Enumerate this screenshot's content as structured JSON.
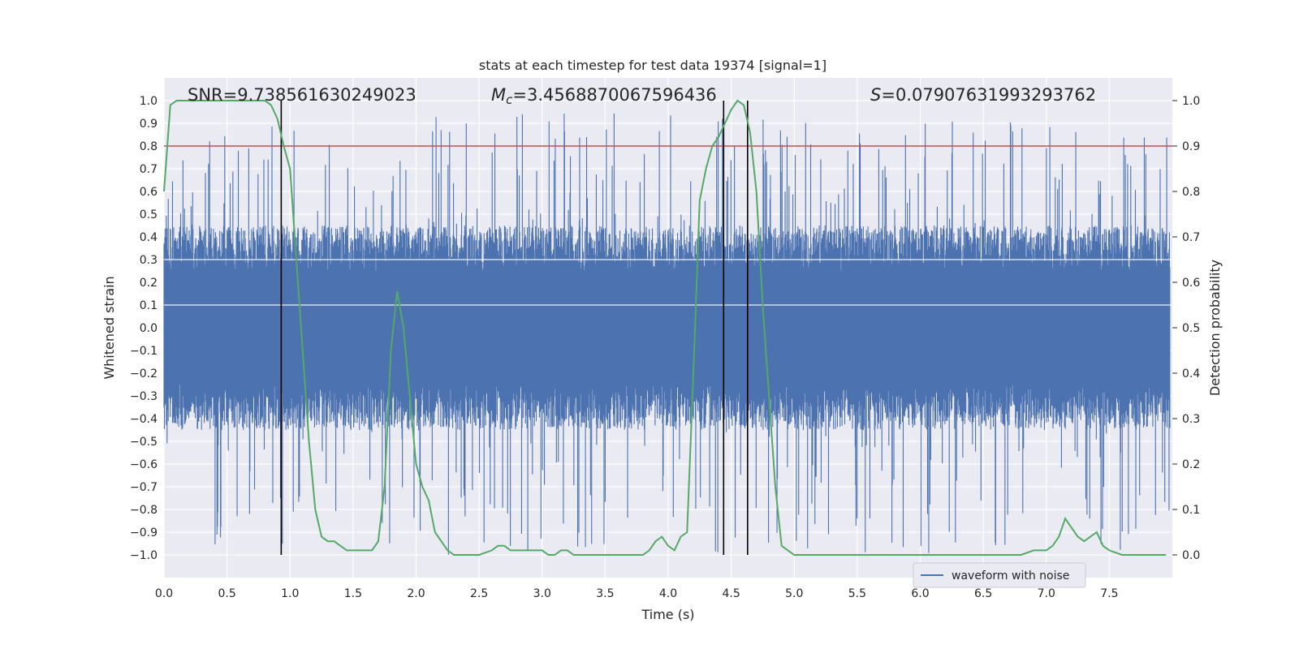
{
  "chart_data": {
    "type": "line",
    "title": "stats at each timestep for test data 19374 [signal=1]",
    "xlabel": "Time (s)",
    "ylabel": "Whitened strain",
    "y2label": "Detection probability",
    "xlim": [
      0.0,
      8.0
    ],
    "ylim": [
      -1.1,
      1.1
    ],
    "y2lim": [
      -0.05,
      1.05
    ],
    "xticks": [
      "0.0",
      "0.5",
      "1.0",
      "1.5",
      "2.0",
      "2.5",
      "3.0",
      "3.5",
      "4.0",
      "4.5",
      "5.0",
      "5.5",
      "6.0",
      "6.5",
      "7.0",
      "7.5"
    ],
    "yticks": [
      "1.0",
      "0.9",
      "0.8",
      "0.7",
      "0.6",
      "0.5",
      "0.4",
      "0.3",
      "0.2",
      "0.1",
      "0.0",
      "−0.1",
      "−0.2",
      "−0.3",
      "−0.4",
      "−0.5",
      "−0.6",
      "−0.7",
      "−0.8",
      "−0.9",
      "−1.0"
    ],
    "y2ticks": [
      "1.0",
      "0.9",
      "0.8",
      "0.7",
      "0.6",
      "0.5",
      "0.4",
      "0.3",
      "0.2",
      "0.1",
      "0.0"
    ],
    "annotations": {
      "snr": "SNR=9.738561630249023",
      "mc_symbol": "M",
      "mc_subscript": "c",
      "mc_value": "=3.4568870067596436",
      "s_symbol": "S",
      "s_value": "=0.07907631993293762"
    },
    "threshold": 0.9,
    "vertical_lines_s": [
      0.93,
      4.44,
      4.63
    ],
    "series": [
      {
        "name": "waveform with noise",
        "color": "#4c72b0",
        "axis": "left",
        "description": "noisy whitened strain, roughly within ±0.45 with spikes up to ±0.95",
        "band": [
          -0.45,
          0.45
        ],
        "extreme": [
          -1.0,
          0.95
        ]
      },
      {
        "name": "detection probability",
        "color": "#55a868",
        "axis": "right",
        "x": [
          0.0,
          0.05,
          0.1,
          0.15,
          0.2,
          0.3,
          0.4,
          0.5,
          0.6,
          0.7,
          0.8,
          0.85,
          0.9,
          0.95,
          1.0,
          1.05,
          1.1,
          1.15,
          1.2,
          1.25,
          1.3,
          1.35,
          1.4,
          1.45,
          1.5,
          1.55,
          1.6,
          1.65,
          1.7,
          1.75,
          1.8,
          1.85,
          1.9,
          1.95,
          2.0,
          2.05,
          2.1,
          2.15,
          2.2,
          2.25,
          2.3,
          2.35,
          2.4,
          2.5,
          2.6,
          2.65,
          2.7,
          2.75,
          2.8,
          2.85,
          2.9,
          2.95,
          3.0,
          3.05,
          3.1,
          3.15,
          3.2,
          3.25,
          3.3,
          3.35,
          3.4,
          3.5,
          3.6,
          3.7,
          3.8,
          3.85,
          3.9,
          3.95,
          4.0,
          4.05,
          4.1,
          4.15,
          4.2,
          4.25,
          4.3,
          4.35,
          4.4,
          4.45,
          4.5,
          4.55,
          4.6,
          4.65,
          4.7,
          4.75,
          4.8,
          4.85,
          4.9,
          4.95,
          5.0,
          5.1,
          5.2,
          5.3,
          5.4,
          5.5,
          5.6,
          5.7,
          5.8,
          5.9,
          6.0,
          6.1,
          6.2,
          6.3,
          6.4,
          6.5,
          6.6,
          6.7,
          6.8,
          6.9,
          7.0,
          7.05,
          7.1,
          7.15,
          7.2,
          7.25,
          7.3,
          7.35,
          7.4,
          7.45,
          7.5,
          7.6,
          7.7,
          7.8,
          7.9,
          7.95
        ],
        "values": [
          0.8,
          0.99,
          1.0,
          1.0,
          1.0,
          1.0,
          1.0,
          1.0,
          1.0,
          1.0,
          1.0,
          0.99,
          0.96,
          0.9,
          0.85,
          0.65,
          0.45,
          0.25,
          0.1,
          0.04,
          0.03,
          0.03,
          0.02,
          0.01,
          0.01,
          0.01,
          0.01,
          0.01,
          0.03,
          0.15,
          0.45,
          0.58,
          0.5,
          0.35,
          0.2,
          0.15,
          0.12,
          0.05,
          0.03,
          0.01,
          0.0,
          0.0,
          0.0,
          0.0,
          0.01,
          0.02,
          0.02,
          0.01,
          0.01,
          0.01,
          0.01,
          0.01,
          0.01,
          0.0,
          0.0,
          0.01,
          0.01,
          0.0,
          0.0,
          0.0,
          0.0,
          0.0,
          0.0,
          0.0,
          0.0,
          0.01,
          0.03,
          0.04,
          0.02,
          0.01,
          0.04,
          0.05,
          0.4,
          0.78,
          0.85,
          0.9,
          0.92,
          0.95,
          0.98,
          1.0,
          0.99,
          0.93,
          0.8,
          0.55,
          0.35,
          0.15,
          0.02,
          0.01,
          0.0,
          0.0,
          0.0,
          0.0,
          0.0,
          0.0,
          0.0,
          0.0,
          0.0,
          0.0,
          0.0,
          0.0,
          0.0,
          0.0,
          0.0,
          0.0,
          0.0,
          0.0,
          0.0,
          0.01,
          0.01,
          0.02,
          0.04,
          0.08,
          0.06,
          0.04,
          0.03,
          0.04,
          0.05,
          0.02,
          0.01,
          0.0,
          0.0,
          0.0,
          0.0,
          0.0
        ]
      }
    ],
    "legend": {
      "placement": "lower-right",
      "entries": [
        "waveform with noise"
      ]
    },
    "grid": true,
    "threshold_color": "#c44e52",
    "vline_color": "#000000"
  }
}
